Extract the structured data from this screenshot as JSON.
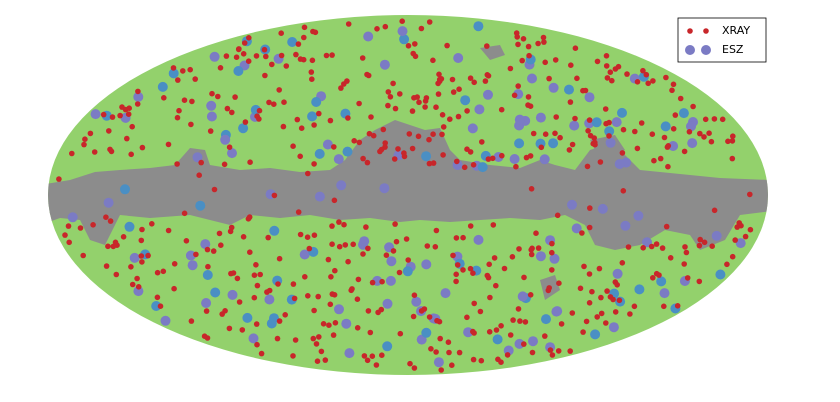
{
  "legend": {
    "entries": [
      {
        "label": "XRAY"
      },
      {
        "label": "ESZ"
      }
    ]
  }
}
